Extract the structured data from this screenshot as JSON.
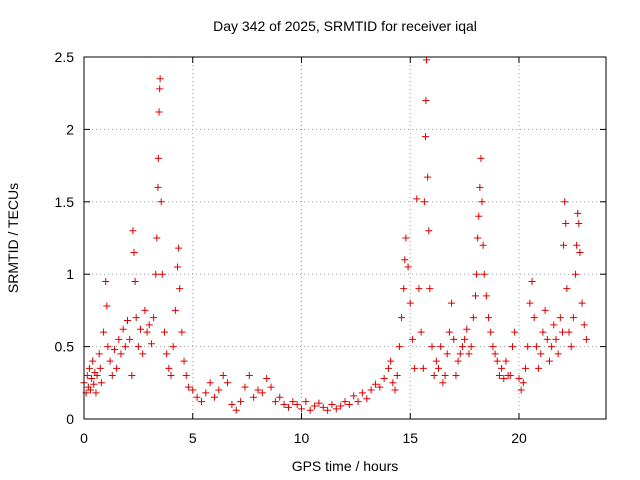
{
  "chart_data": {
    "type": "scatter",
    "title": "Day 342 of 2025, SRMTID for receiver iqal",
    "xlabel": "GPS time / hours",
    "ylabel": "SRMTID / TECUs",
    "xlim": [
      0,
      24
    ],
    "ylim": [
      0,
      2.5
    ],
    "x_ticks": [
      0,
      5,
      10,
      15,
      20
    ],
    "x_tick_labels": [
      "0",
      "5",
      "10",
      "15",
      "20"
    ],
    "y_ticks": [
      0,
      0.5,
      1,
      1.5,
      2,
      2.5
    ],
    "y_tick_labels": [
      "0",
      "0.5",
      "1",
      "1.5",
      "2",
      "2.5"
    ],
    "grid": true,
    "legend": "none",
    "marker": "plus",
    "color": "#dd0000",
    "series": [
      {
        "name": "SRMTID",
        "points": [
          [
            0.0,
            0.25
          ],
          [
            0.1,
            0.18
          ],
          [
            0.15,
            0.3
          ],
          [
            0.2,
            0.22
          ],
          [
            0.25,
            0.35
          ],
          [
            0.3,
            0.2
          ],
          [
            0.35,
            0.28
          ],
          [
            0.4,
            0.4
          ],
          [
            0.45,
            0.24
          ],
          [
            0.5,
            0.32
          ],
          [
            0.55,
            0.18
          ],
          [
            0.6,
            0.3
          ],
          [
            0.7,
            0.45
          ],
          [
            0.75,
            0.35
          ],
          [
            0.8,
            0.25
          ],
          [
            0.9,
            0.6
          ],
          [
            1.0,
            0.95
          ],
          [
            1.05,
            0.78
          ],
          [
            1.1,
            0.5
          ],
          [
            1.2,
            0.4
          ],
          [
            1.3,
            0.3
          ],
          [
            1.4,
            0.48
          ],
          [
            1.5,
            0.35
          ],
          [
            1.6,
            0.55
          ],
          [
            1.7,
            0.45
          ],
          [
            1.8,
            0.62
          ],
          [
            1.9,
            0.5
          ],
          [
            2.0,
            0.68
          ],
          [
            2.1,
            0.55
          ],
          [
            2.2,
            0.3
          ],
          [
            2.25,
            1.3
          ],
          [
            2.3,
            1.15
          ],
          [
            2.35,
            0.95
          ],
          [
            2.4,
            0.7
          ],
          [
            2.5,
            0.5
          ],
          [
            2.6,
            0.62
          ],
          [
            2.7,
            0.45
          ],
          [
            2.8,
            0.75
          ],
          [
            2.9,
            0.6
          ],
          [
            3.0,
            0.65
          ],
          [
            3.1,
            0.52
          ],
          [
            3.2,
            0.7
          ],
          [
            3.3,
            1.0
          ],
          [
            3.35,
            1.25
          ],
          [
            3.4,
            1.6
          ],
          [
            3.42,
            1.8
          ],
          [
            3.45,
            2.12
          ],
          [
            3.48,
            2.28
          ],
          [
            3.5,
            2.35
          ],
          [
            3.55,
            1.5
          ],
          [
            3.6,
            1.0
          ],
          [
            3.7,
            0.6
          ],
          [
            3.8,
            0.45
          ],
          [
            3.9,
            0.35
          ],
          [
            4.0,
            0.3
          ],
          [
            4.1,
            0.5
          ],
          [
            4.2,
            0.75
          ],
          [
            4.3,
            1.05
          ],
          [
            4.35,
            1.18
          ],
          [
            4.4,
            0.9
          ],
          [
            4.5,
            0.6
          ],
          [
            4.6,
            0.4
          ],
          [
            4.7,
            0.3
          ],
          [
            4.8,
            0.22
          ],
          [
            5.0,
            0.2
          ],
          [
            5.2,
            0.15
          ],
          [
            5.4,
            0.12
          ],
          [
            5.6,
            0.18
          ],
          [
            5.8,
            0.25
          ],
          [
            6.0,
            0.15
          ],
          [
            6.2,
            0.2
          ],
          [
            6.4,
            0.3
          ],
          [
            6.6,
            0.25
          ],
          [
            6.8,
            0.1
          ],
          [
            7.0,
            0.06
          ],
          [
            7.2,
            0.12
          ],
          [
            7.4,
            0.22
          ],
          [
            7.6,
            0.3
          ],
          [
            7.8,
            0.15
          ],
          [
            8.0,
            0.2
          ],
          [
            8.2,
            0.18
          ],
          [
            8.4,
            0.28
          ],
          [
            8.6,
            0.22
          ],
          [
            8.8,
            0.12
          ],
          [
            9.0,
            0.15
          ],
          [
            9.2,
            0.1
          ],
          [
            9.4,
            0.08
          ],
          [
            9.6,
            0.12
          ],
          [
            9.8,
            0.1
          ],
          [
            10.0,
            0.07
          ],
          [
            10.2,
            0.12
          ],
          [
            10.4,
            0.06
          ],
          [
            10.6,
            0.09
          ],
          [
            10.8,
            0.11
          ],
          [
            11.0,
            0.08
          ],
          [
            11.2,
            0.06
          ],
          [
            11.4,
            0.1
          ],
          [
            11.6,
            0.07
          ],
          [
            11.8,
            0.09
          ],
          [
            12.0,
            0.12
          ],
          [
            12.2,
            0.1
          ],
          [
            12.4,
            0.16
          ],
          [
            12.6,
            0.12
          ],
          [
            12.8,
            0.18
          ],
          [
            13.0,
            0.14
          ],
          [
            13.2,
            0.2
          ],
          [
            13.4,
            0.24
          ],
          [
            13.6,
            0.22
          ],
          [
            13.8,
            0.28
          ],
          [
            14.0,
            0.35
          ],
          [
            14.1,
            0.4
          ],
          [
            14.2,
            0.25
          ],
          [
            14.3,
            0.2
          ],
          [
            14.4,
            0.3
          ],
          [
            14.5,
            0.5
          ],
          [
            14.6,
            0.7
          ],
          [
            14.7,
            0.9
          ],
          [
            14.75,
            1.1
          ],
          [
            14.8,
            1.25
          ],
          [
            14.9,
            1.05
          ],
          [
            15.0,
            0.8
          ],
          [
            15.1,
            0.55
          ],
          [
            15.2,
            0.35
          ],
          [
            15.3,
            1.52
          ],
          [
            15.4,
            0.9
          ],
          [
            15.5,
            0.6
          ],
          [
            15.6,
            0.35
          ],
          [
            15.65,
            1.5
          ],
          [
            15.7,
            1.95
          ],
          [
            15.72,
            2.2
          ],
          [
            15.75,
            2.48
          ],
          [
            15.8,
            1.67
          ],
          [
            15.85,
            1.3
          ],
          [
            15.9,
            0.9
          ],
          [
            16.0,
            0.5
          ],
          [
            16.1,
            0.3
          ],
          [
            16.2,
            0.4
          ],
          [
            16.3,
            0.35
          ],
          [
            16.4,
            0.5
          ],
          [
            16.5,
            0.25
          ],
          [
            16.6,
            0.3
          ],
          [
            16.7,
            0.45
          ],
          [
            16.8,
            0.6
          ],
          [
            16.9,
            0.8
          ],
          [
            17.0,
            0.55
          ],
          [
            17.1,
            0.3
          ],
          [
            17.2,
            0.4
          ],
          [
            17.3,
            0.45
          ],
          [
            17.4,
            0.5
          ],
          [
            17.5,
            0.55
          ],
          [
            17.6,
            0.62
          ],
          [
            17.7,
            0.45
          ],
          [
            17.8,
            0.5
          ],
          [
            17.9,
            0.7
          ],
          [
            18.0,
            0.85
          ],
          [
            18.05,
            1.0
          ],
          [
            18.1,
            1.25
          ],
          [
            18.15,
            1.4
          ],
          [
            18.2,
            1.6
          ],
          [
            18.25,
            1.8
          ],
          [
            18.3,
            1.5
          ],
          [
            18.35,
            1.2
          ],
          [
            18.4,
            1.0
          ],
          [
            18.5,
            0.85
          ],
          [
            18.6,
            0.7
          ],
          [
            18.7,
            0.6
          ],
          [
            18.8,
            0.5
          ],
          [
            18.9,
            0.45
          ],
          [
            19.0,
            0.4
          ],
          [
            19.1,
            0.3
          ],
          [
            19.2,
            0.35
          ],
          [
            19.3,
            0.28
          ],
          [
            19.4,
            0.4
          ],
          [
            19.5,
            0.3
          ],
          [
            19.6,
            0.3
          ],
          [
            19.7,
            0.5
          ],
          [
            19.8,
            0.6
          ],
          [
            20.0,
            0.28
          ],
          [
            20.1,
            0.2
          ],
          [
            20.2,
            0.25
          ],
          [
            20.3,
            0.35
          ],
          [
            20.4,
            0.5
          ],
          [
            20.5,
            0.8
          ],
          [
            20.6,
            0.95
          ],
          [
            20.7,
            0.7
          ],
          [
            20.8,
            0.5
          ],
          [
            20.9,
            0.35
          ],
          [
            21.0,
            0.45
          ],
          [
            21.1,
            0.6
          ],
          [
            21.2,
            0.75
          ],
          [
            21.3,
            0.55
          ],
          [
            21.4,
            0.4
          ],
          [
            21.5,
            0.5
          ],
          [
            21.6,
            0.65
          ],
          [
            21.7,
            0.55
          ],
          [
            21.8,
            0.45
          ],
          [
            21.9,
            0.7
          ],
          [
            22.0,
            0.6
          ],
          [
            22.05,
            1.2
          ],
          [
            22.1,
            1.5
          ],
          [
            22.15,
            1.35
          ],
          [
            22.2,
            0.9
          ],
          [
            22.3,
            0.6
          ],
          [
            22.4,
            0.5
          ],
          [
            22.5,
            0.7
          ],
          [
            22.6,
            1.0
          ],
          [
            22.65,
            1.2
          ],
          [
            22.7,
            1.42
          ],
          [
            22.75,
            1.35
          ],
          [
            22.8,
            1.15
          ],
          [
            22.9,
            0.8
          ],
          [
            23.0,
            0.65
          ],
          [
            23.1,
            0.55
          ]
        ]
      }
    ]
  }
}
